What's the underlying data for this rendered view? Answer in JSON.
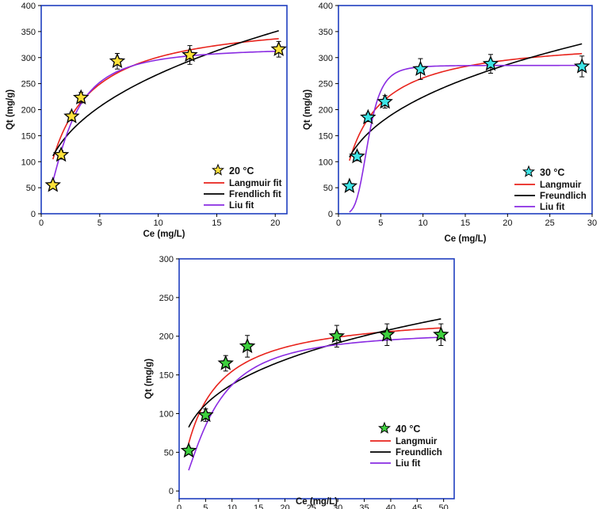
{
  "colors": {
    "frame": "#1f3fbf",
    "langmuir": "#e8231c",
    "freundlich": "#000000",
    "liu": "#8a2be2"
  },
  "chart_data": [
    {
      "type": "scatter",
      "panel": "top-left",
      "ylabel": "Qt (mg/g)",
      "xlabel": "Ce (mg/L)",
      "xlim": [
        0,
        21
      ],
      "ylim": [
        0,
        400
      ],
      "xticks": [
        0,
        5,
        10,
        15,
        20
      ],
      "yticks": [
        0,
        50,
        100,
        150,
        200,
        250,
        300,
        350,
        400
      ],
      "legend_position": "bottom-right",
      "marker_color": "#ffe23a",
      "legend": [
        "20 °C",
        "Langmuir fit",
        "Frendlich fit",
        "Liu fit"
      ],
      "points": {
        "x": [
          1.0,
          1.7,
          2.6,
          3.4,
          6.5,
          12.7,
          20.3
        ],
        "y": [
          55,
          113,
          187,
          223,
          293,
          305,
          316
        ],
        "err": [
          6,
          8,
          8,
          10,
          15,
          18,
          15
        ]
      },
      "curves": [
        {
          "name": "Langmuir",
          "model": "langmuir",
          "qmax": 380,
          "k": 0.38,
          "xrange": [
            1.0,
            20.3
          ]
        },
        {
          "name": "Freundlich",
          "model": "freundlich",
          "k": 111,
          "n": 0.383,
          "xrange": [
            1.0,
            20.3
          ]
        },
        {
          "name": "Liu",
          "model": "liu",
          "qmax": 320,
          "k": 0.434,
          "n": 1.7,
          "xrange": [
            1.0,
            20.3
          ]
        }
      ]
    },
    {
      "type": "scatter",
      "panel": "top-right",
      "ylabel": "Qt (mg/g)",
      "xlabel": "Ce (mg/L)",
      "xlim": [
        0,
        30
      ],
      "ylim": [
        0,
        400
      ],
      "xticks": [
        0,
        5,
        10,
        15,
        20,
        25,
        30
      ],
      "yticks": [
        0,
        50,
        100,
        150,
        200,
        250,
        300,
        350,
        400
      ],
      "legend_position": "bottom-right",
      "marker_color": "#3ee4e6",
      "legend": [
        "30 °C",
        "Langmuir",
        "Freundlich",
        "Liu fit"
      ],
      "points": {
        "x": [
          1.3,
          2.2,
          3.5,
          5.5,
          9.7,
          18.0,
          28.8
        ],
        "y": [
          53,
          110,
          185,
          215,
          278,
          288,
          283
        ],
        "err": [
          5,
          8,
          8,
          12,
          20,
          18,
          20
        ]
      },
      "curves": [
        {
          "name": "Langmuir",
          "model": "langmuir",
          "qmax": 340,
          "k": 0.33,
          "xrange": [
            1.3,
            28.8
          ]
        },
        {
          "name": "Freundlich",
          "model": "freundlich",
          "k": 99,
          "n": 0.355,
          "xrange": [
            1.3,
            28.8
          ]
        },
        {
          "name": "Liu",
          "model": "liu",
          "qmax": 285,
          "k": 0.283,
          "n": 4.5,
          "xrange": [
            1.3,
            28.8
          ]
        }
      ]
    },
    {
      "type": "scatter",
      "panel": "bottom",
      "ylabel": "Qt (mg/g)",
      "xlabel": "Ce (mg/L)",
      "xlim": [
        0,
        52
      ],
      "ylim": [
        -10,
        300
      ],
      "xticks": [
        0,
        5,
        10,
        15,
        20,
        25,
        30,
        35,
        40,
        45,
        50
      ],
      "yticks": [
        0,
        50,
        100,
        150,
        200,
        250,
        300
      ],
      "legend_position": "bottom-right",
      "marker_color": "#3ed03e",
      "legend": [
        "40 °C",
        "Langmuir",
        "Freundlich",
        "Liu fit"
      ],
      "points": {
        "x": [
          1.8,
          5.0,
          8.8,
          12.9,
          29.8,
          39.3,
          49.5
        ],
        "y": [
          52,
          98,
          165,
          187,
          200,
          202,
          202
        ],
        "err": [
          4,
          8,
          10,
          14,
          14,
          14,
          14
        ]
      },
      "curves": [
        {
          "name": "Langmuir",
          "model": "langmuir",
          "qmax": 232,
          "k": 0.2,
          "xrange": [
            1.8,
            49.5
          ]
        },
        {
          "name": "Freundlich",
          "model": "freundlich",
          "k": 69,
          "n": 0.3,
          "xrange": [
            1.8,
            49.5
          ]
        },
        {
          "name": "Liu",
          "model": "liu",
          "qmax": 208,
          "k": 0.155,
          "n": 1.5,
          "xrange": [
            1.8,
            49.5
          ]
        }
      ]
    }
  ]
}
